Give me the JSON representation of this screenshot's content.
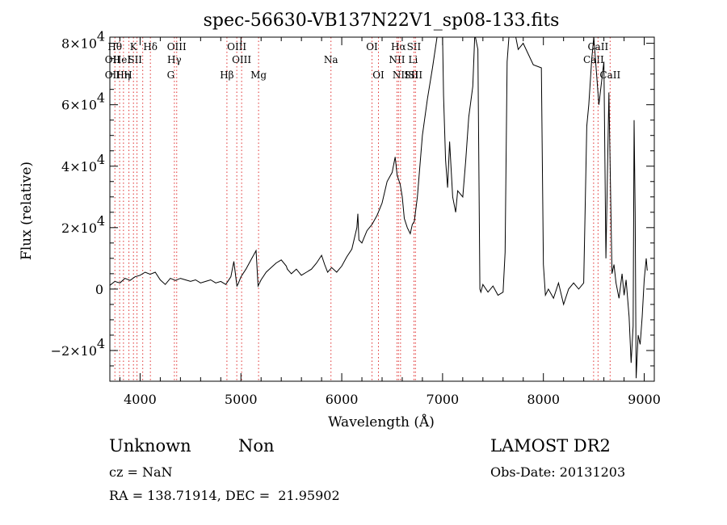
{
  "chart_data": {
    "type": "line",
    "title": "spec-56630-VB137N22V1_sp08-133.fits",
    "xlabel": "Wavelength (Å)",
    "ylabel": "Flux (relative)",
    "xlim": [
      3700,
      9100
    ],
    "ylim": [
      -30000,
      82000
    ],
    "x_ticks": [
      {
        "value": 4000,
        "label": "4000"
      },
      {
        "value": 5000,
        "label": "5000"
      },
      {
        "value": 6000,
        "label": "6000"
      },
      {
        "value": 7000,
        "label": "7000"
      },
      {
        "value": 8000,
        "label": "8000"
      },
      {
        "value": 9000,
        "label": "9000"
      }
    ],
    "y_ticks": [
      {
        "value": -20000,
        "label": "−2×10",
        "exp": "4"
      },
      {
        "value": 0,
        "label": "0",
        "exp": ""
      },
      {
        "value": 20000,
        "label": "2×10",
        "exp": "4"
      },
      {
        "value": 40000,
        "label": "4×10",
        "exp": "4"
      },
      {
        "value": 60000,
        "label": "6×10",
        "exp": "4"
      },
      {
        "value": 80000,
        "label": "8×10",
        "exp": "4"
      }
    ],
    "grid": false,
    "series": [
      {
        "x": [
          3700,
          3750,
          3800,
          3850,
          3900,
          3950,
          4000,
          4050,
          4100,
          4150,
          4200,
          4250,
          4300,
          4350,
          4400,
          4450,
          4500,
          4550,
          4600,
          4650,
          4700,
          4750,
          4800,
          4850,
          4900,
          4930,
          4960,
          4970,
          5000,
          5050,
          5100,
          5150,
          5170,
          5200,
          5250,
          5300,
          5350,
          5400,
          5450,
          5460,
          5500,
          5550,
          5600,
          5650,
          5700,
          5750,
          5800,
          5830,
          5860,
          5900,
          5950,
          6000,
          6050,
          6100,
          6150,
          6160,
          6170,
          6200,
          6250,
          6300,
          6350,
          6400,
          6450,
          6500,
          6530,
          6550,
          6580,
          6600,
          6620,
          6650,
          6680,
          6700,
          6720,
          6750,
          6800,
          6850,
          6900,
          6950,
          7000,
          7010,
          7030,
          7050,
          7070,
          7100,
          7130,
          7150,
          7200,
          7230,
          7260,
          7300,
          7320,
          7350,
          7370,
          7380,
          7400,
          7450,
          7500,
          7550,
          7600,
          7620,
          7640,
          7660,
          7700,
          7720,
          7750,
          7800,
          7900,
          7980,
          8000,
          8020,
          8050,
          8100,
          8150,
          8200,
          8250,
          8300,
          8350,
          8400,
          8430,
          8450,
          8480,
          8500,
          8550,
          8600,
          8620,
          8650,
          8680,
          8700,
          8720,
          8750,
          8780,
          8800,
          8820,
          8850,
          8870,
          8890,
          8900,
          8910,
          8920,
          8940,
          8960,
          8980,
          9000,
          9020,
          9030
        ],
        "y": [
          1200,
          2500,
          2000,
          3500,
          2800,
          4000,
          4500,
          5500,
          4800,
          5500,
          3000,
          1500,
          3500,
          2800,
          3500,
          3000,
          2500,
          3000,
          2000,
          2500,
          3000,
          2000,
          2500,
          1500,
          4000,
          9000,
          1000,
          1500,
          4000,
          6500,
          9500,
          12500,
          1000,
          3000,
          5500,
          7000,
          8500,
          9500,
          7500,
          6500,
          5000,
          6500,
          4500,
          5500,
          6500,
          8500,
          11000,
          8000,
          5500,
          7000,
          5500,
          7500,
          10500,
          13000,
          20000,
          24500,
          16000,
          15000,
          19000,
          21000,
          24000,
          28000,
          35000,
          38000,
          43000,
          37000,
          34000,
          30000,
          23000,
          20000,
          18000,
          21000,
          22000,
          30000,
          50000,
          62000,
          72000,
          83000,
          82000,
          63000,
          42000,
          33000,
          48000,
          30000,
          25000,
          32000,
          30000,
          42000,
          56000,
          66000,
          83000,
          78000,
          0,
          -1000,
          1500,
          -1000,
          1000,
          -2000,
          -1000,
          12000,
          74000,
          83000,
          82000,
          83000,
          78000,
          80000,
          73000,
          72000,
          8000,
          -2000,
          0,
          -3000,
          2000,
          -5000,
          0,
          2000,
          0,
          2000,
          53000,
          60000,
          75000,
          82000,
          60000,
          74000,
          10000,
          64000,
          5000,
          8000,
          2000,
          -3000,
          5000,
          -2000,
          3000,
          -9000,
          -24000,
          -12000,
          55000,
          25000,
          -29000,
          -15000,
          -18000,
          -9000,
          3000,
          10000,
          6000
        ]
      }
    ],
    "line_markers": [
      {
        "x": 3750,
        "label": "Hθ",
        "row": 1
      },
      {
        "x": 3797,
        "label": "",
        "row": 0
      },
      {
        "x": 3835,
        "label": "",
        "row": 0
      },
      {
        "x": 3889,
        "label": "",
        "row": 0
      },
      {
        "x": 3934,
        "label": "K",
        "row": 1
      },
      {
        "x": 3969,
        "label": "",
        "row": 0
      },
      {
        "x": 4026,
        "label": "",
        "row": 0
      },
      {
        "x": 4102,
        "label": "Hδ",
        "row": 1
      },
      {
        "x": 4340,
        "label": "Hγ",
        "row": 2
      },
      {
        "x": 4363,
        "label": "OIII",
        "row": 1
      },
      {
        "x": 4861,
        "label": "Hβ",
        "row": 3
      },
      {
        "x": 4959,
        "label": "OIII",
        "row": 1
      },
      {
        "x": 5007,
        "label": "OIII",
        "row": 2
      },
      {
        "x": 5175,
        "label": "Mg",
        "row": 3
      },
      {
        "x": 5893,
        "label": "Na",
        "row": 2
      },
      {
        "x": 6300,
        "label": "OI",
        "row": 1
      },
      {
        "x": 6364,
        "label": "OI",
        "row": 3
      },
      {
        "x": 6548,
        "label": "NII",
        "row": 2
      },
      {
        "x": 6563,
        "label": "Hα",
        "row": 1
      },
      {
        "x": 6583,
        "label": "NII",
        "row": 3
      },
      {
        "x": 6716,
        "label": "SII",
        "row": 1
      },
      {
        "x": 6731,
        "label": "SII",
        "row": 3
      },
      {
        "x": 8498,
        "label": "CaII",
        "row": 2
      },
      {
        "x": 8542,
        "label": "CaII",
        "row": 1
      },
      {
        "x": 8662,
        "label": "CaII",
        "row": 3
      }
    ],
    "extra_labels": [
      {
        "x": 3727,
        "row": 2,
        "label": "OII"
      },
      {
        "x": 3727,
        "row": 3,
        "label": "OII"
      },
      {
        "x": 3820,
        "row": 2,
        "label": "HeI"
      },
      {
        "x": 3830,
        "row": 3,
        "label": "Hη"
      },
      {
        "x": 3880,
        "row": 3,
        "label": "H"
      },
      {
        "x": 3950,
        "row": 2,
        "label": "SII"
      },
      {
        "x": 4304,
        "row": 3,
        "label": "G"
      },
      {
        "x": 6708,
        "row": 2,
        "label": "Li"
      },
      {
        "x": 6690,
        "row": 3,
        "label": "SII"
      }
    ]
  },
  "footer": {
    "class_label": "Unknown",
    "subclass_label": "Non",
    "cz": "cz = NaN",
    "coords": "RA = 138.71914, DEC =  21.95902",
    "survey": "LAMOST DR2",
    "obs_date": "Obs-Date: 20131203"
  }
}
